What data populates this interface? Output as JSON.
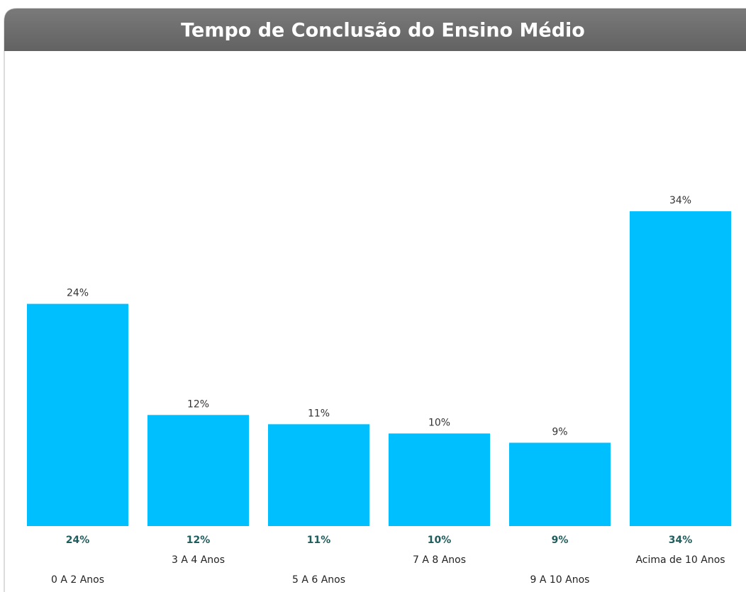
{
  "chart_data": {
    "type": "bar",
    "title": "Tempo de Conclusão do Ensino Médio",
    "categories": [
      "0 A 2 Anos",
      "3 A 4 Anos",
      "5 A 6 Anos",
      "7 A 8 Anos",
      "9 A 10 Anos",
      "Acima de 10 Anos"
    ],
    "values": [
      24,
      12,
      11,
      10,
      9,
      34
    ],
    "value_labels": [
      "24%",
      "12%",
      "11%",
      "10%",
      "9%",
      "34%"
    ],
    "color": "#00bfff"
  }
}
